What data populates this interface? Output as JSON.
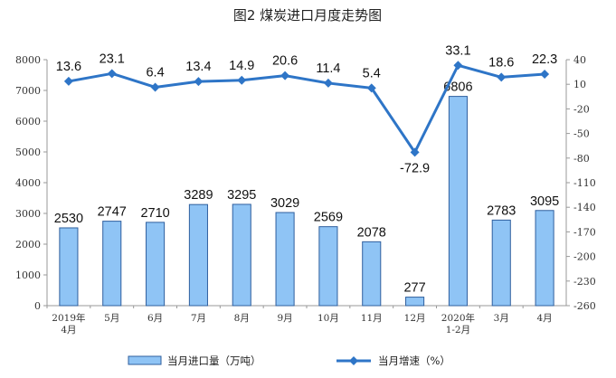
{
  "chart_data": {
    "type": "bar+line",
    "title": "图2  煤炭进口月度走势图",
    "categories": [
      "2019年\n4月",
      "5月",
      "6月",
      "7月",
      "8月",
      "9月",
      "10月",
      "11月",
      "12月",
      "2020年\n1-2月",
      "3月",
      "4月"
    ],
    "series": [
      {
        "name": "当月进口量（万吨）",
        "type": "bar",
        "axis": "left",
        "color": "#8fc4f5",
        "values": [
          2530,
          2747,
          2710,
          3289,
          3295,
          3029,
          2569,
          2078,
          277,
          6806,
          2783,
          3095
        ]
      },
      {
        "name": "当月增速（%）",
        "type": "line",
        "axis": "right",
        "color": "#2e75c7",
        "values": [
          13.6,
          23.1,
          6.4,
          13.4,
          14.9,
          20.6,
          11.4,
          5.4,
          -72.9,
          33.1,
          18.6,
          22.3
        ]
      }
    ],
    "y_left": {
      "ylim": [
        0,
        8000
      ],
      "ticks": [
        0,
        1000,
        2000,
        3000,
        4000,
        5000,
        6000,
        7000,
        8000
      ]
    },
    "y_right": {
      "ylim": [
        -260,
        40
      ],
      "ticks": [
        40,
        10,
        -20,
        -50,
        -80,
        -110,
        -140,
        -170,
        -200,
        -230,
        -260
      ]
    },
    "grid": false,
    "legend_position": "bottom"
  }
}
